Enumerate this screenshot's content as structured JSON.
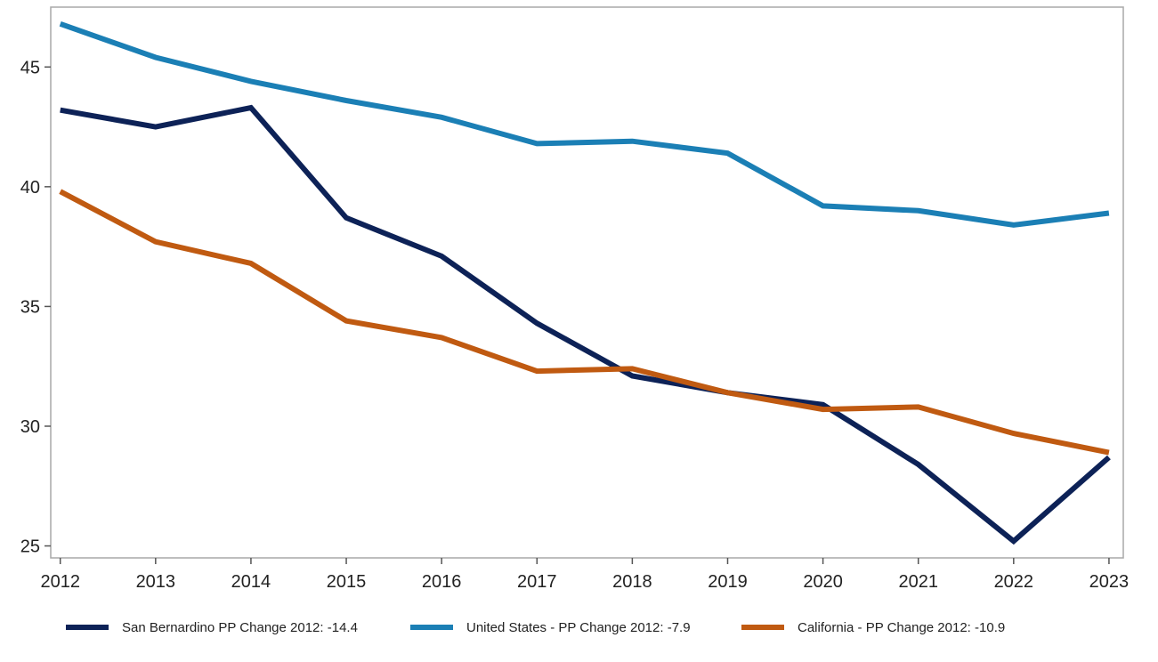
{
  "chart_data": {
    "type": "line",
    "title": "",
    "xlabel": "",
    "ylabel": "",
    "x": [
      2012,
      2013,
      2014,
      2015,
      2016,
      2017,
      2018,
      2019,
      2020,
      2021,
      2022,
      2023
    ],
    "x_ticks": [
      "2012",
      "2013",
      "2014",
      "2015",
      "2016",
      "2017",
      "2018",
      "2019",
      "2020",
      "2021",
      "2022",
      "2023"
    ],
    "y_ticks": [
      25,
      30,
      35,
      40,
      45
    ],
    "ylim": [
      24.5,
      47.5
    ],
    "xlim": [
      2011.9,
      2023.15
    ],
    "grid": false,
    "legend_position": "bottom",
    "series": [
      {
        "name": "San Bernardino PP Change 2012: -14.4",
        "color": "#0d2257",
        "values": [
          43.2,
          42.5,
          43.3,
          38.7,
          37.1,
          34.3,
          32.1,
          31.4,
          30.9,
          28.4,
          25.2,
          28.7
        ]
      },
      {
        "name": "United States - PP Change 2012: -7.9",
        "color": "#1b7fb5",
        "values": [
          46.8,
          45.4,
          44.4,
          43.6,
          42.9,
          41.8,
          41.9,
          41.4,
          39.2,
          39.0,
          38.4,
          38.9
        ]
      },
      {
        "name": "California - PP Change 2012: -10.9",
        "color": "#c05a11",
        "values": [
          39.8,
          37.7,
          36.8,
          34.4,
          33.7,
          32.3,
          32.4,
          31.4,
          30.7,
          30.8,
          29.7,
          28.9
        ]
      }
    ]
  }
}
